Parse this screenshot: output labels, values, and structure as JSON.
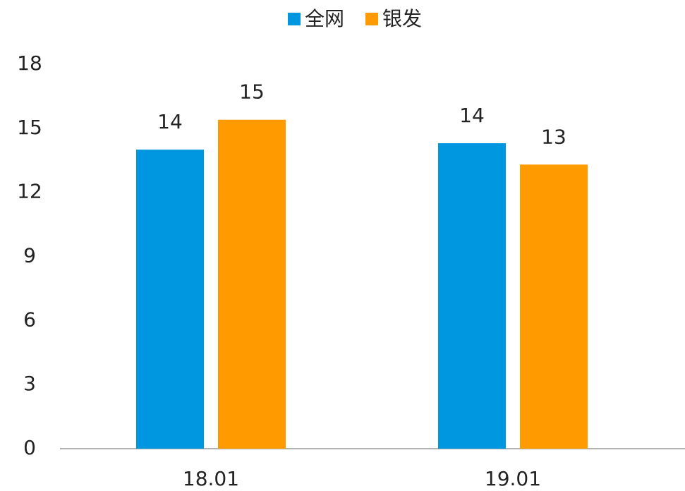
{
  "chart_data": {
    "type": "bar",
    "categories": [
      "18.01",
      "19.01"
    ],
    "series": [
      {
        "name": "全网",
        "color": "#0096e0",
        "values": [
          14,
          14.3
        ],
        "value_labels": [
          "14",
          "14"
        ]
      },
      {
        "name": "银发",
        "color": "#ff9a00",
        "values": [
          15.4,
          13.3
        ],
        "value_labels": [
          "15",
          "13"
        ]
      }
    ],
    "ylim": [
      0,
      18
    ],
    "yticks": [
      0,
      3,
      6,
      9,
      12,
      15,
      18
    ],
    "grid": false,
    "legend": "top"
  }
}
